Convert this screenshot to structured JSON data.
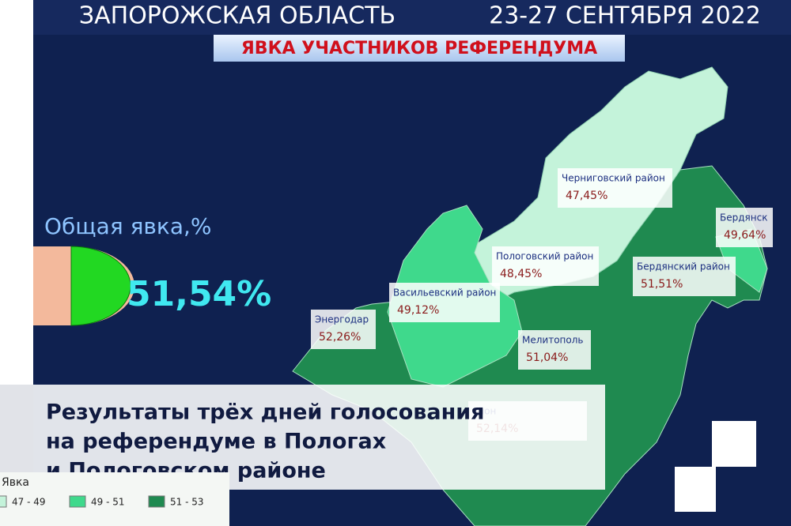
{
  "header": {
    "region": "ЗАПОРОЖСКАЯ ОБЛАСТЬ",
    "dates": "23-27 СЕНТЯБРЯ 2022",
    "subtitle": "ЯВКА УЧАСТНИКОВ РЕФЕРЕНДУМА"
  },
  "total": {
    "label": "Общая явка,%",
    "value": "51,54%"
  },
  "regions": [
    {
      "name": "Черниговский район",
      "value": "47,45%"
    },
    {
      "name": "Бердянск",
      "value": "49,64%"
    },
    {
      "name": "Пологовский район",
      "value": "48,45%"
    },
    {
      "name": "Бердянский район",
      "value": "51,51%"
    },
    {
      "name": "Васильевский район",
      "value": "49,12%"
    },
    {
      "name": "Энергодар",
      "value": "52,26%"
    },
    {
      "name": "Мелитополь",
      "value": "51,04%"
    },
    {
      "name": "айон",
      "value": "52,14%"
    }
  ],
  "legend": {
    "title": "Явка",
    "items": [
      "47 - 49",
      "49 - 51",
      "51 - 53"
    ]
  },
  "caption": [
    "Результаты трёх дней голосования",
    "на референдуме в Пологах",
    "и Пологовском районе"
  ]
}
